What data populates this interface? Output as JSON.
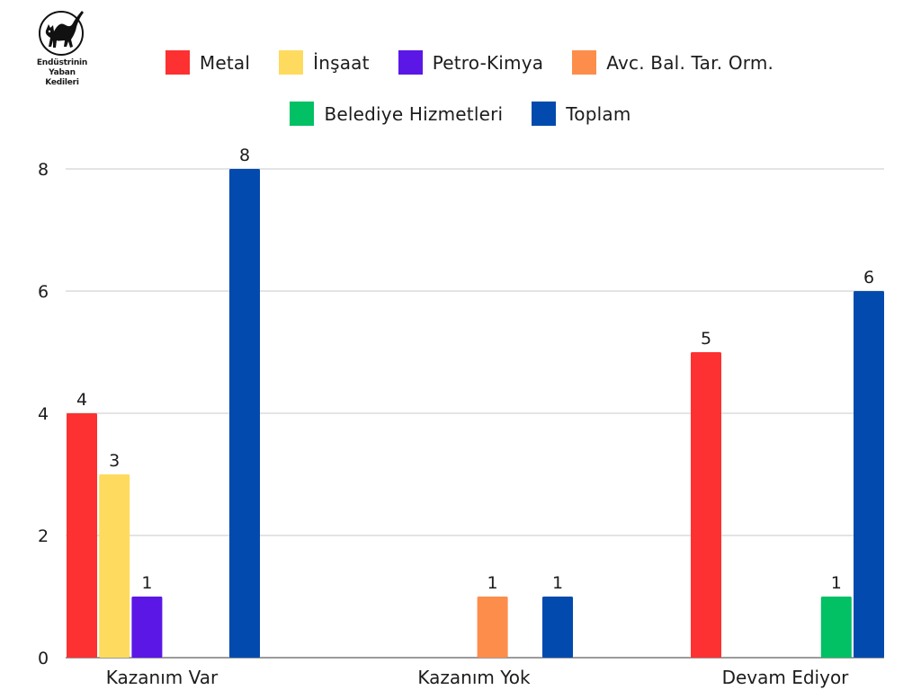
{
  "logo": {
    "icon": "black-cat-icon",
    "lines": [
      "Endüstrinin",
      "Yaban",
      "Kedileri"
    ]
  },
  "chart_data": {
    "type": "bar",
    "title": "",
    "xlabel": "",
    "ylabel": "",
    "ylim": [
      0,
      8
    ],
    "yticks": [
      0,
      2,
      4,
      6,
      8
    ],
    "grid": true,
    "legend_position": "top-center",
    "categories": [
      "Kazanım Var",
      "Kazanım Yok",
      "Devam Ediyor"
    ],
    "series": [
      {
        "name": "Metal",
        "color": "#fd3131",
        "values": [
          4,
          null,
          5
        ]
      },
      {
        "name": "İnşaat",
        "color": "#fedb5e",
        "values": [
          3,
          null,
          null
        ]
      },
      {
        "name": "Petro-Kimya",
        "color": "#5a17e6",
        "values": [
          1,
          null,
          null
        ]
      },
      {
        "name": "Avc. Bal. Tar. Orm.",
        "color": "#fd8d4b",
        "values": [
          null,
          1,
          null
        ]
      },
      {
        "name": "Belediye Hizmetleri",
        "color": "#02c064",
        "values": [
          null,
          null,
          1
        ]
      },
      {
        "name": "Toplam",
        "color": "#024aad",
        "values": [
          8,
          1,
          6
        ]
      }
    ]
  }
}
